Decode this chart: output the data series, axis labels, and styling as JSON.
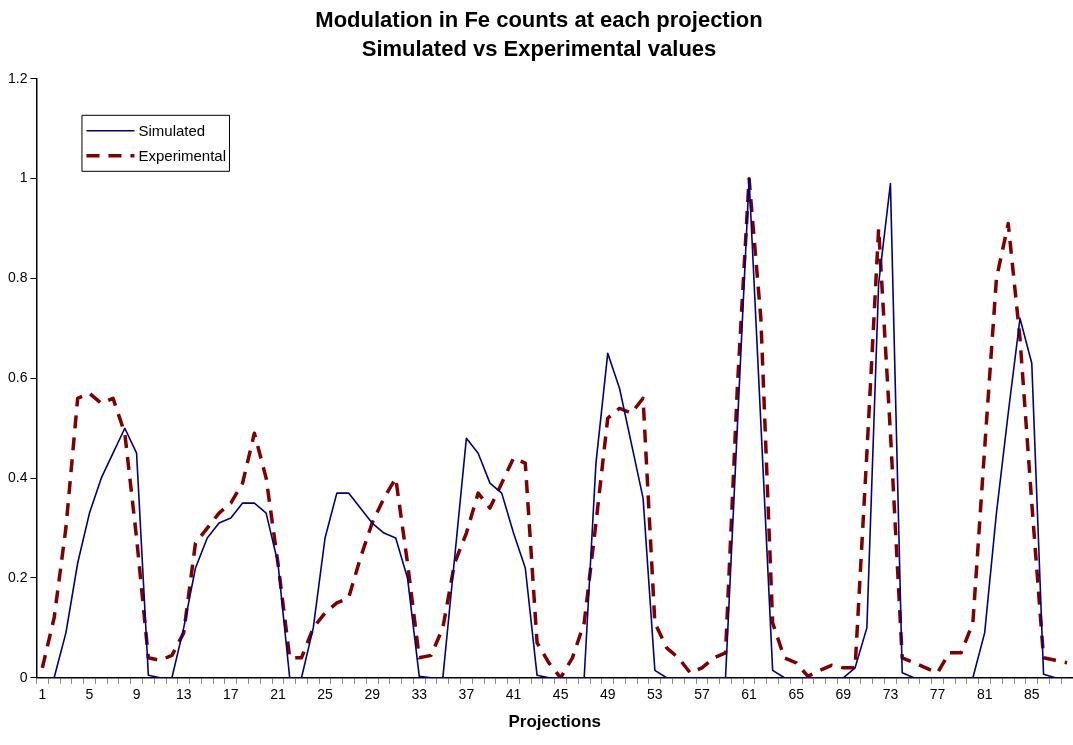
{
  "chart_data": {
    "type": "line",
    "title": "Modulation in Fe counts at each projection",
    "subtitle": "Simulated vs Experimental values",
    "xlabel": "Projections",
    "categories": [
      "1",
      null,
      null,
      null,
      "5",
      null,
      null,
      null,
      "9",
      null,
      null,
      null,
      "13",
      null,
      null,
      null,
      "17",
      null,
      null,
      null,
      "21",
      null,
      null,
      null,
      "25",
      null,
      null,
      null,
      "29",
      null,
      null,
      null,
      "33",
      null,
      null,
      null,
      "37",
      null,
      null,
      null,
      "41",
      null,
      null,
      null,
      "45",
      null,
      null,
      null,
      "49",
      null,
      null,
      null,
      "53",
      null,
      null,
      null,
      "57",
      null,
      null,
      null,
      "61",
      null,
      null,
      null,
      "65",
      null,
      null,
      null,
      "69",
      null,
      null,
      null,
      "73",
      null,
      null,
      null,
      "77",
      null,
      null,
      null,
      "81",
      null,
      null,
      null,
      "85",
      null,
      null,
      null
    ],
    "series": [
      {
        "name": "Simulated",
        "color": "#000080",
        "line_style": "solid",
        "values": [
          0,
          0,
          0.09,
          0.23,
          0.33,
          0.4,
          0.45,
          0.5,
          0.45,
          0.005,
          0,
          0,
          0.1,
          0.22,
          0.28,
          0.31,
          0.32,
          0.35,
          0.35,
          0.33,
          0.23,
          0,
          0,
          0.1,
          0.28,
          0.37,
          0.37,
          0.34,
          0.31,
          0.29,
          0.28,
          0.2,
          0.003,
          0,
          0,
          0.24,
          0.48,
          0.45,
          0.39,
          0.37,
          0.29,
          0.22,
          0.005,
          0,
          0,
          0,
          0,
          0.43,
          0.65,
          0.58,
          0.47,
          0.36,
          0.015,
          0,
          0,
          0,
          0,
          0,
          0,
          0.5,
          1,
          0.51,
          0.015,
          0,
          0,
          0,
          0,
          0,
          0,
          0.02,
          0.1,
          0.79,
          0.99,
          0.01,
          0,
          0,
          0,
          0,
          0,
          0,
          0.09,
          0.33,
          0.53,
          0.72,
          0.63,
          0.007,
          0,
          0
        ]
      },
      {
        "name": "Experimental",
        "color": "#800000",
        "line_style": "dashed",
        "values": [
          0.02,
          0.12,
          0.3,
          0.56,
          0.57,
          0.55,
          0.56,
          0.49,
          0.28,
          0.04,
          0.035,
          0.045,
          0.09,
          0.27,
          0.3,
          0.33,
          0.35,
          0.39,
          0.49,
          0.4,
          0.23,
          0.04,
          0.04,
          0.1,
          0.13,
          0.15,
          0.16,
          0.24,
          0.31,
          0.36,
          0.4,
          0.23,
          0.04,
          0.045,
          0.1,
          0.23,
          0.29,
          0.37,
          0.34,
          0.39,
          0.44,
          0.43,
          0.07,
          0.03,
          0,
          0.04,
          0.11,
          0.31,
          0.52,
          0.54,
          0.53,
          0.56,
          0.11,
          0.06,
          0.04,
          0.01,
          0.02,
          0.04,
          0.05,
          0.58,
          1,
          0.72,
          0.11,
          0.04,
          0.03,
          0.003,
          0.015,
          0.025,
          0.02,
          0.02,
          0.45,
          0.9,
          0.49,
          0.04,
          0.03,
          0.02,
          0.01,
          0.05,
          0.05,
          0.11,
          0.46,
          0.8,
          0.91,
          0.68,
          0.35,
          0.04,
          0.035,
          0.03
        ]
      }
    ],
    "ylim": [
      0,
      1.2
    ],
    "yticks": [
      0,
      0.2,
      0.4,
      0.6,
      0.8,
      1,
      1.2
    ],
    "legend": "top left",
    "marker": "none"
  }
}
